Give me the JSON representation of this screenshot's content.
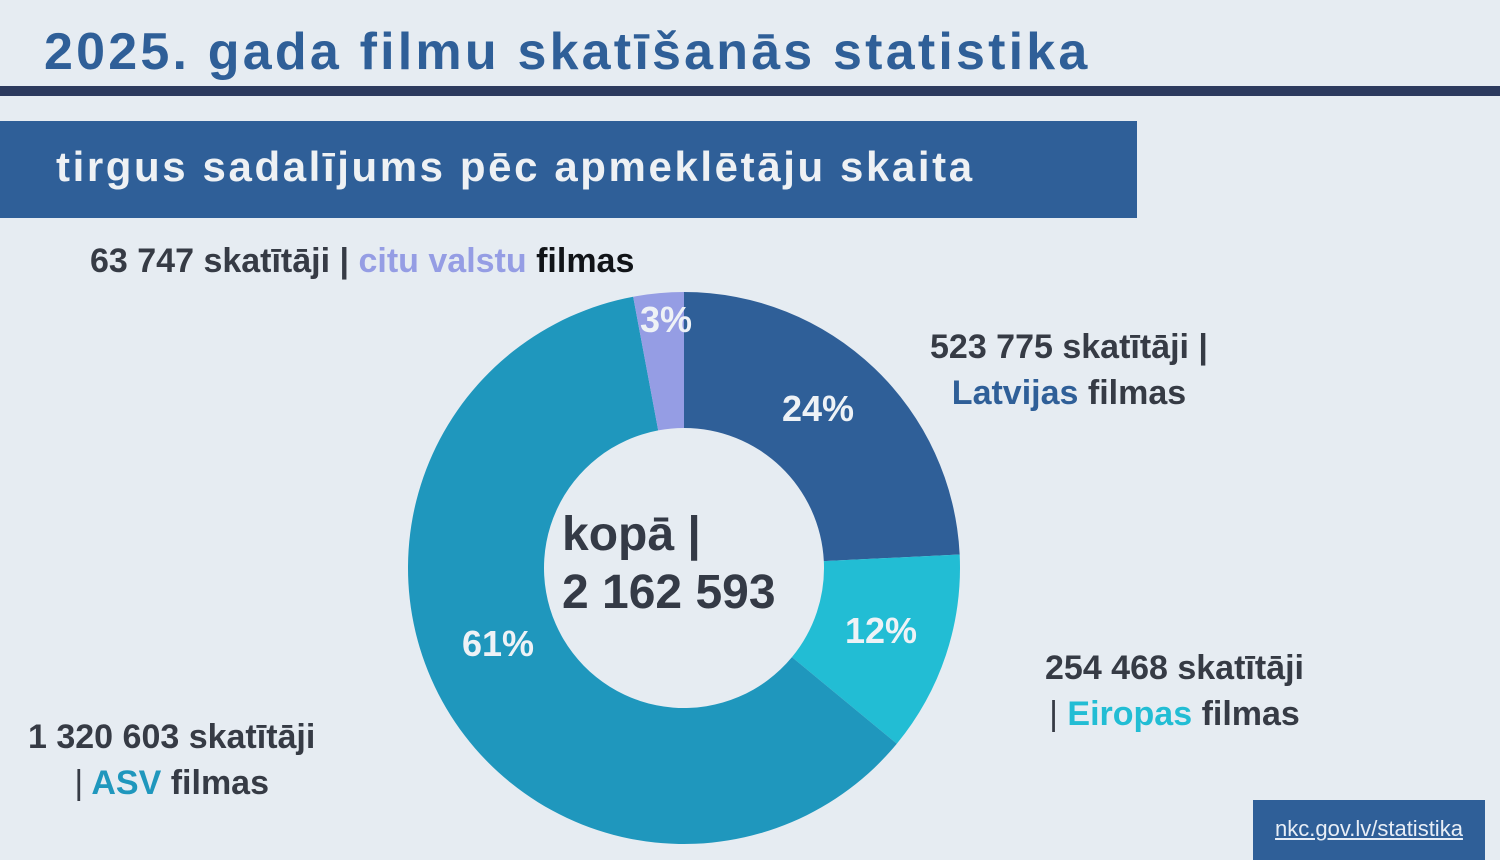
{
  "header": {
    "title": "2025. gada filmu skatīšanās statistika",
    "subtitle": "tirgus sadalījums pēc apmeklētāju skaita"
  },
  "center": {
    "line1": "kopā |",
    "line2": "2 162 593"
  },
  "callouts": {
    "other": {
      "count": "63 747 skatītāji |",
      "category": "citu valstu",
      "suffix": "filmas"
    },
    "latvia": {
      "count": "523 775 skatītāji |",
      "category": "Latvijas",
      "suffix": "filmas"
    },
    "europe": {
      "count": "254 468 skatītāji",
      "pipe": "|",
      "category": "Eiropas",
      "suffix": "filmas"
    },
    "usa": {
      "count": "1 320 603 skatītāji",
      "pipe": "|",
      "category": "ASV",
      "suffix": "filmas"
    }
  },
  "footer": {
    "link": "nkc.gov.lv/statistika"
  },
  "colors": {
    "background": "#e6ecf2",
    "title": "#2f5f98",
    "rule": "#2c3a5e",
    "banner": "#2f5f98",
    "text_dark": "#363b45",
    "latvia": "#2f5f98",
    "europe": "#22bdd4",
    "usa": "#1f97bd",
    "other": "#959de4"
  },
  "chart_data": {
    "type": "pie",
    "variant": "donut",
    "title": "2025. gada filmu skatīšanās statistika",
    "subtitle": "tirgus sadalījums pēc apmeklētāju skaita",
    "total": 2162593,
    "total_label": "kopā | 2 162 593",
    "categories": [
      "Latvijas filmas",
      "Eiropas filmas",
      "ASV filmas",
      "citu valstu filmas"
    ],
    "values": [
      523775,
      254468,
      1320603,
      63747
    ],
    "percent_labels": [
      "24%",
      "12%",
      "61%",
      "3%"
    ],
    "colors": [
      "#2f5f98",
      "#22bdd4",
      "#1f97bd",
      "#959de4"
    ],
    "start_angle_deg": 0,
    "direction": "clockwise",
    "legend": "callout labels beside each slice"
  }
}
